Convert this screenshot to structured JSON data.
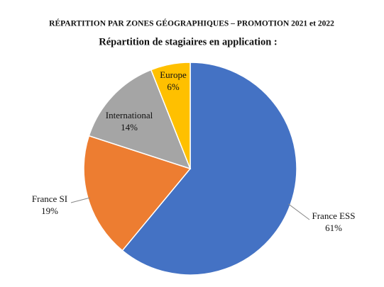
{
  "chart_data": {
    "type": "pie",
    "title": "RÉPARTITION PAR ZONES GÉOGRAPHIQUES – PROMOTION 2021 et 2022",
    "subtitle": "Répartition de stagiaires en application :",
    "categories": [
      "France ESS",
      "France SI",
      "International",
      "Europe"
    ],
    "values": [
      61,
      19,
      14,
      6
    ],
    "value_labels": [
      "61%",
      "19%",
      "14%",
      "6%"
    ],
    "colors": [
      "#4472c4",
      "#ed7d31",
      "#a5a5a5",
      "#ffc000"
    ]
  }
}
